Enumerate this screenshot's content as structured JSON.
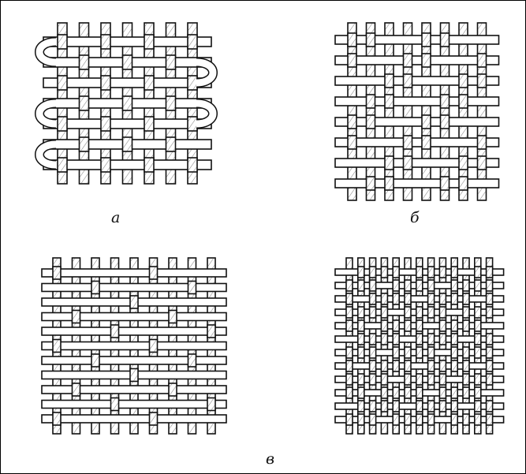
{
  "figure": {
    "panels": [
      {
        "id": "a",
        "caption": "а"
      },
      {
        "id": "b",
        "caption": "б"
      },
      {
        "id": "v",
        "caption": "в"
      },
      {
        "id": "g",
        "caption": ""
      }
    ],
    "colors": {
      "ink": "#111111",
      "fill": "#ffffff",
      "hatch": "#222222"
    }
  }
}
